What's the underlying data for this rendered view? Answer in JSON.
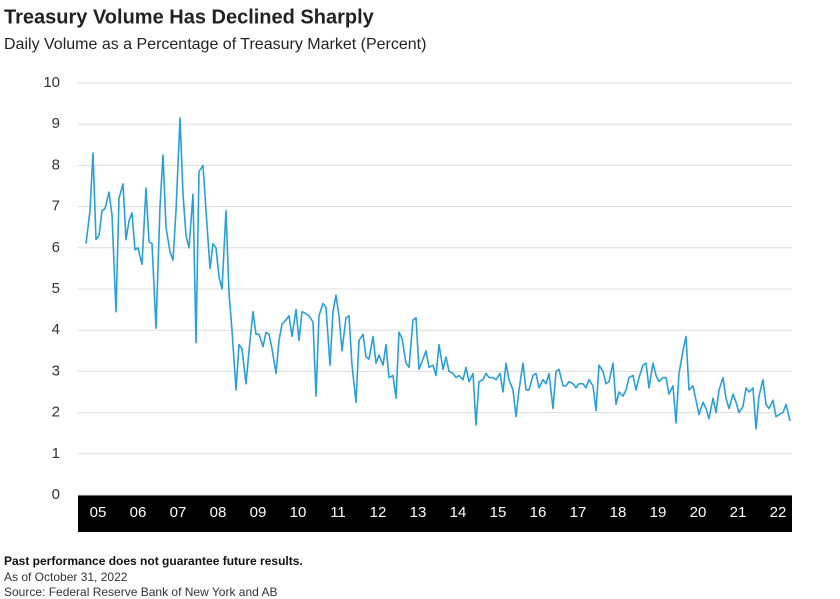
{
  "chart_data": {
    "type": "line",
    "title": "Treasury Volume Has Declined Sharply",
    "subtitle": "Daily Volume as a Percentage of Treasury Market (Percent)",
    "notes": [
      "Past performance does not guarantee future results.",
      "As of  October 31, 2022",
      "Source: Federal Reserve Bank of New York and AB"
    ],
    "color": "#2a9fd6",
    "grid": true,
    "xlim": [
      2005,
      2023
    ],
    "ylim": [
      0,
      10
    ],
    "yticks": [
      0,
      1,
      2,
      3,
      4,
      5,
      6,
      7,
      8,
      9,
      10
    ],
    "xticks": [
      {
        "value": 2005,
        "label": "05"
      },
      {
        "value": 2006,
        "label": "06"
      },
      {
        "value": 2007,
        "label": "07"
      },
      {
        "value": 2008,
        "label": "08"
      },
      {
        "value": 2009,
        "label": "09"
      },
      {
        "value": 2010,
        "label": "10"
      },
      {
        "value": 2011,
        "label": "11"
      },
      {
        "value": 2012,
        "label": "12"
      },
      {
        "value": 2013,
        "label": "13"
      },
      {
        "value": 2014,
        "label": "14"
      },
      {
        "value": 2015,
        "label": "15"
      },
      {
        "value": 2016,
        "label": "16"
      },
      {
        "value": 2017,
        "label": "17"
      },
      {
        "value": 2018,
        "label": "18"
      },
      {
        "value": 2019,
        "label": "19"
      },
      {
        "value": 2020,
        "label": "20"
      },
      {
        "value": 2021,
        "label": "21"
      },
      {
        "value": 2022,
        "label": "22"
      }
    ],
    "x": [
      2005.2,
      2005.3,
      2005.375,
      2005.45,
      2005.525,
      2005.6,
      2005.675,
      2005.775,
      2005.85,
      2005.95,
      2006.025,
      2006.125,
      2006.2,
      2006.275,
      2006.35,
      2006.425,
      2006.5,
      2006.6,
      2006.7,
      2006.775,
      2006.85,
      2006.95,
      2007.05,
      2007.125,
      2007.2,
      2007.3,
      2007.375,
      2007.45,
      2007.55,
      2007.625,
      2007.7,
      2007.775,
      2007.875,
      2007.95,
      2008.025,
      2008.125,
      2008.2,
      2008.3,
      2008.375,
      2008.45,
      2008.525,
      2008.6,
      2008.7,
      2008.775,
      2008.85,
      2008.95,
      2009.025,
      2009.1,
      2009.2,
      2009.275,
      2009.375,
      2009.45,
      2009.525,
      2009.625,
      2009.7,
      2009.775,
      2009.85,
      2009.95,
      2010.025,
      2010.1,
      2010.2,
      2010.275,
      2010.35,
      2010.45,
      2010.525,
      2010.6,
      2010.7,
      2010.775,
      2010.875,
      2010.95,
      2011.025,
      2011.125,
      2011.2,
      2011.3,
      2011.375,
      2011.45,
      2011.525,
      2011.6,
      2011.7,
      2011.775,
      2011.85,
      2011.95,
      2012.025,
      2012.125,
      2012.2,
      2012.275,
      2012.375,
      2012.45,
      2012.525,
      2012.625,
      2012.7,
      2012.775,
      2012.875,
      2012.95,
      2013.025,
      2013.1,
      2013.2,
      2013.275,
      2013.375,
      2013.45,
      2013.525,
      2013.625,
      2013.7,
      2013.775,
      2013.875,
      2013.95,
      2014.025,
      2014.125,
      2014.2,
      2014.275,
      2014.375,
      2014.45,
      2014.525,
      2014.625,
      2014.7,
      2014.775,
      2014.875,
      2014.95,
      2015.025,
      2015.125,
      2015.2,
      2015.275,
      2015.375,
      2015.45,
      2015.55,
      2015.625,
      2015.7,
      2015.775,
      2015.875,
      2015.95,
      2016.025,
      2016.125,
      2016.2,
      2016.275,
      2016.375,
      2016.45,
      2016.525,
      2016.625,
      2016.7,
      2016.775,
      2016.875,
      2016.95,
      2017.025,
      2017.125,
      2017.2,
      2017.275,
      2017.375,
      2017.45,
      2017.525,
      2017.625,
      2017.7,
      2017.775,
      2017.875,
      2017.95,
      2018.025,
      2018.125,
      2018.2,
      2018.275,
      2018.375,
      2018.45,
      2018.525,
      2018.625,
      2018.7,
      2018.775,
      2018.875,
      2018.95,
      2019.025,
      2019.125,
      2019.2,
      2019.275,
      2019.375,
      2019.45,
      2019.525,
      2019.625,
      2019.7,
      2019.775,
      2019.875,
      2019.95,
      2020.025,
      2020.125,
      2020.2,
      2020.275,
      2020.375,
      2020.45,
      2020.525,
      2020.625,
      2020.7,
      2020.775,
      2020.875,
      2020.95,
      2021.025,
      2021.125,
      2021.2,
      2021.275,
      2021.375,
      2021.45,
      2021.525,
      2021.625,
      2021.7,
      2021.775,
      2021.875,
      2021.95,
      2022.025,
      2022.125,
      2022.2,
      2022.275,
      2022.375,
      2022.45,
      2022.525,
      2022.625,
      2022.7,
      2022.8
    ],
    "values": [
      6.1,
      6.9,
      8.3,
      6.2,
      6.3,
      6.9,
      6.95,
      7.35,
      6.8,
      4.45,
      7.2,
      7.55,
      6.2,
      6.65,
      6.85,
      5.95,
      6.0,
      5.6,
      7.45,
      6.15,
      6.1,
      4.05,
      7.0,
      8.25,
      6.5,
      5.9,
      5.7,
      6.9,
      9.15,
      7.3,
      6.3,
      6.0,
      7.3,
      3.7,
      7.85,
      8.0,
      6.9,
      5.5,
      6.1,
      6.0,
      5.3,
      5.0,
      6.9,
      4.9,
      4.0,
      2.55,
      3.65,
      3.55,
      2.7,
      3.5,
      4.45,
      3.9,
      3.9,
      3.6,
      3.95,
      3.9,
      3.55,
      2.95,
      3.75,
      4.15,
      4.25,
      4.35,
      3.85,
      4.5,
      3.75,
      4.45,
      4.4,
      4.35,
      4.2,
      2.4,
      4.35,
      4.65,
      4.55,
      3.15,
      4.45,
      4.85,
      4.35,
      3.5,
      4.3,
      4.35,
      3.15,
      2.25,
      3.75,
      3.9,
      3.35,
      3.3,
      3.85,
      3.2,
      3.4,
      3.15,
      3.65,
      2.85,
      2.9,
      2.35,
      3.95,
      3.8,
      3.2,
      3.1,
      4.25,
      4.3,
      3.05,
      3.3,
      3.5,
      3.1,
      3.15,
      2.9,
      3.65,
      3.05,
      3.35,
      3.0,
      2.95,
      2.85,
      2.9,
      2.8,
      3.1,
      2.75,
      2.95,
      1.7,
      2.75,
      2.8,
      2.95,
      2.85,
      2.85,
      2.8,
      2.95,
      2.5,
      3.2,
      2.8,
      2.55,
      1.9,
      2.55,
      3.2,
      2.55,
      2.55,
      2.9,
      2.95,
      2.6,
      2.8,
      2.7,
      2.95,
      2.1,
      3.0,
      3.05,
      2.65,
      2.65,
      2.75,
      2.7,
      2.6,
      2.7,
      2.7,
      2.6,
      2.8,
      2.65,
      2.05,
      3.15,
      3.0,
      2.7,
      2.75,
      3.2,
      2.2,
      2.5,
      2.4,
      2.55,
      2.85,
      2.9,
      2.55,
      2.85,
      3.15,
      3.2,
      2.6,
      3.2,
      2.9,
      2.75,
      2.85,
      2.85,
      2.45,
      2.65,
      1.75,
      2.95,
      3.5,
      3.85,
      2.55,
      2.65,
      2.3,
      1.95,
      2.25,
      2.1,
      1.85,
      2.35,
      2.0,
      2.55,
      2.85,
      2.35,
      2.1,
      2.45,
      2.25,
      2.0,
      2.15,
      2.6,
      2.5,
      2.6,
      1.6,
      2.4,
      2.8,
      2.2,
      2.1,
      2.3,
      1.9,
      1.95,
      2.0,
      2.2,
      1.8
    ]
  }
}
